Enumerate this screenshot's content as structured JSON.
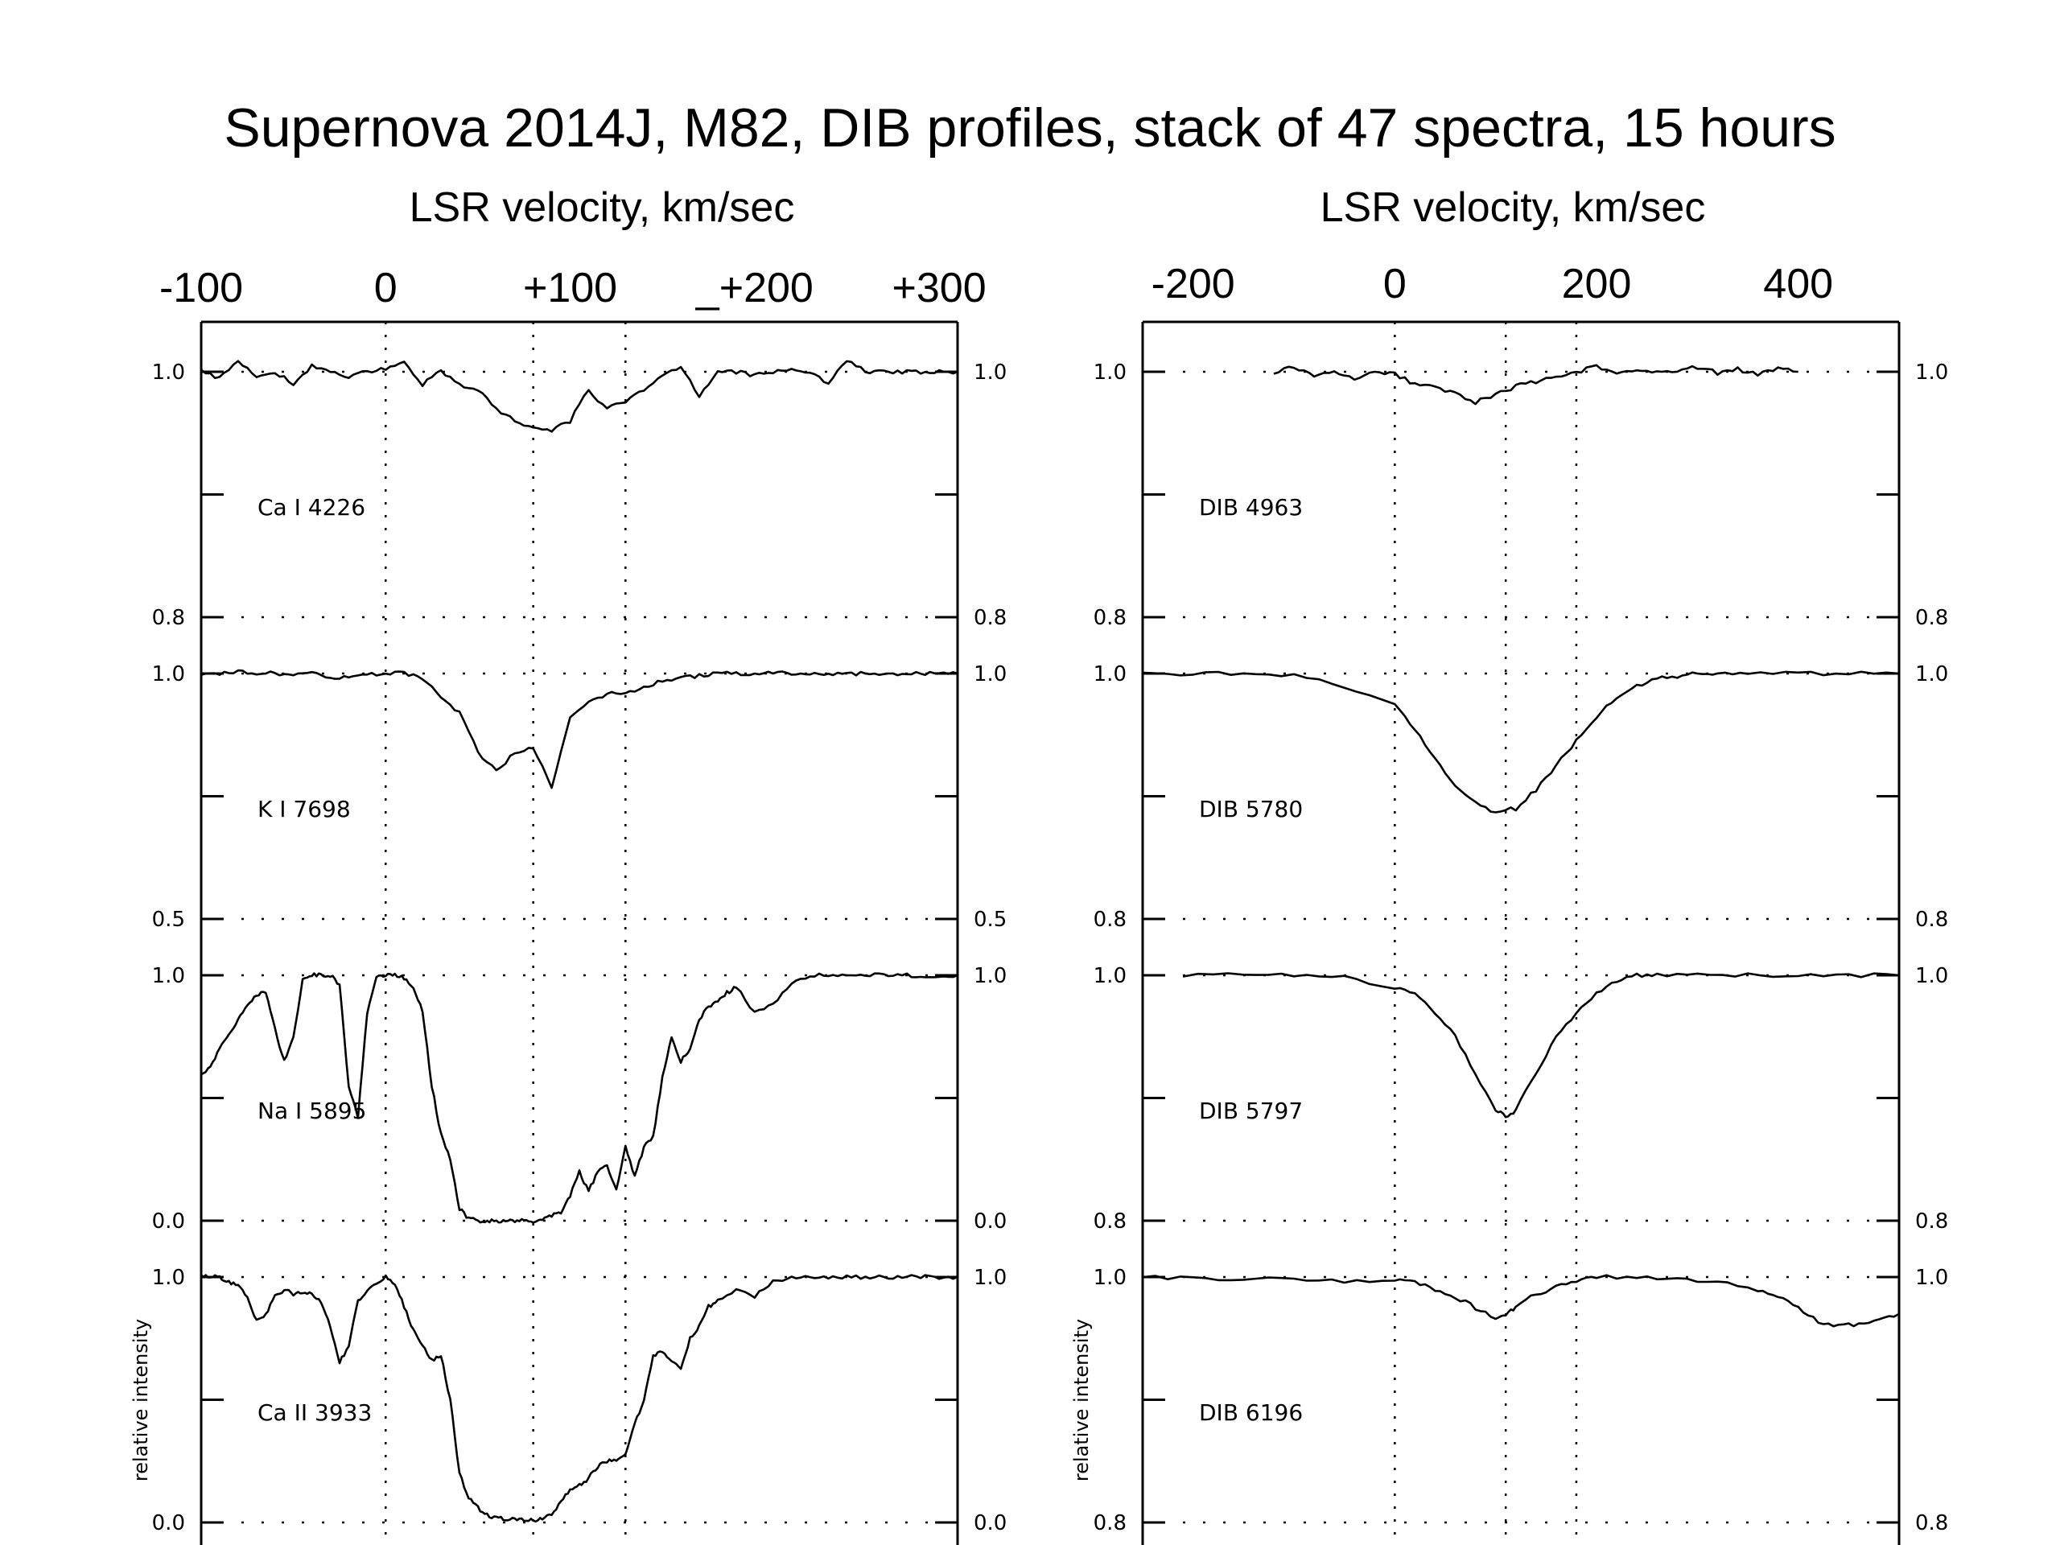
{
  "title": "Supernova 2014J, M82, DIB profiles, stack of 47 spectra, 15 hours",
  "chart_data": [
    {
      "type": "line",
      "axis_title": "LSR velocity, km/sec",
      "xlim": [
        -100,
        310
      ],
      "top_ticks": [
        {
          "v": -100,
          "label": "-100"
        },
        {
          "v": 0,
          "label": "0"
        },
        {
          "v": 100,
          "label": "+100"
        },
        {
          "v": 200,
          "label": "_+200"
        },
        {
          "v": 300,
          "label": "+300"
        }
      ],
      "vlines": [
        0,
        80,
        130
      ],
      "ylabel": "relative intensity",
      "grid": "dotted",
      "panels": [
        {
          "label": "Ca I 4226",
          "ylim": [
            0.8,
            1.0
          ],
          "ytick_top": "1.0",
          "ytick_bottom": "0.8",
          "x": [
            -100,
            -90,
            -80,
            -70,
            -60,
            -50,
            -40,
            -30,
            -20,
            -10,
            0,
            10,
            20,
            30,
            40,
            50,
            60,
            70,
            80,
            90,
            100,
            110,
            120,
            130,
            140,
            150,
            160,
            170,
            180,
            190,
            200,
            210,
            220,
            230,
            240,
            250,
            260,
            270,
            280,
            290,
            300,
            310
          ],
          "y": [
            1.0,
            0.995,
            1.01,
            0.995,
            1.0,
            0.99,
            1.005,
            1.0,
            0.995,
            1.0,
            1.003,
            1.007,
            0.99,
            1.0,
            0.99,
            0.985,
            0.97,
            0.96,
            0.955,
            0.952,
            0.96,
            0.985,
            0.97,
            0.975,
            0.985,
            0.997,
            1.005,
            0.98,
            1.0,
            1.0,
            0.997,
            1.0,
            1.003,
            1.0,
            0.99,
            1.01,
            1.0,
            1.0,
            1.0,
            1.0,
            1.0,
            1.0
          ]
        },
        {
          "label": "K I 7698",
          "ylim": [
            0.5,
            1.0
          ],
          "ytick_top": "1.0",
          "ytick_bottom": "0.5",
          "x": [
            -100,
            -90,
            -80,
            -70,
            -60,
            -50,
            -40,
            -30,
            -20,
            -10,
            0,
            10,
            20,
            30,
            40,
            50,
            60,
            70,
            80,
            90,
            100,
            110,
            120,
            130,
            140,
            150,
            160,
            170,
            180,
            190,
            200,
            210,
            220,
            230,
            240,
            250,
            260,
            270,
            280,
            290,
            300,
            310
          ],
          "y": [
            1.0,
            1.0,
            1.005,
            1.0,
            1.0,
            1.0,
            1.0,
            0.99,
            0.995,
            1.0,
            1.0,
            1.0,
            0.99,
            0.95,
            0.92,
            0.84,
            0.8,
            0.84,
            0.85,
            0.77,
            0.91,
            0.94,
            0.96,
            0.96,
            0.97,
            0.985,
            0.99,
            0.995,
            1.0,
            1.0,
            1.0,
            1.0,
            1.0,
            1.0,
            1.0,
            1.0,
            1.0,
            1.0,
            1.0,
            1.0,
            1.0,
            1.0
          ]
        },
        {
          "label": "Na I 5895",
          "ylim": [
            0.0,
            1.0
          ],
          "ytick_top": "1.0",
          "ytick_bottom": "0.0",
          "x": [
            -100,
            -95,
            -90,
            -85,
            -80,
            -75,
            -70,
            -65,
            -60,
            -55,
            -50,
            -45,
            -40,
            -35,
            -30,
            -25,
            -20,
            -15,
            -10,
            -5,
            0,
            5,
            10,
            15,
            20,
            25,
            30,
            35,
            40,
            45,
            50,
            55,
            60,
            65,
            70,
            75,
            80,
            85,
            90,
            95,
            100,
            105,
            110,
            115,
            120,
            125,
            130,
            135,
            140,
            145,
            150,
            155,
            160,
            165,
            170,
            175,
            180,
            185,
            190,
            200,
            210,
            220,
            230,
            240,
            250,
            260,
            270,
            280,
            290,
            300,
            310
          ],
          "y": [
            0.6,
            0.62,
            0.7,
            0.76,
            0.82,
            0.88,
            0.92,
            0.93,
            0.78,
            0.65,
            0.75,
            0.98,
            1.0,
            1.0,
            1.0,
            0.96,
            0.55,
            0.42,
            0.85,
            1.0,
            1.0,
            1.0,
            0.99,
            0.95,
            0.85,
            0.55,
            0.35,
            0.25,
            0.05,
            0.01,
            0.0,
            0.0,
            0.0,
            0.0,
            0.0,
            0.0,
            0.0,
            0.0,
            0.02,
            0.03,
            0.1,
            0.2,
            0.12,
            0.2,
            0.23,
            0.12,
            0.3,
            0.18,
            0.3,
            0.34,
            0.58,
            0.75,
            0.65,
            0.7,
            0.82,
            0.87,
            0.9,
            0.93,
            0.95,
            0.85,
            0.88,
            0.97,
            1.0,
            1.0,
            1.0,
            1.0,
            1.0,
            1.0,
            1.0,
            1.0,
            1.0
          ]
        },
        {
          "label": "Ca II 3933",
          "ylim": [
            0.0,
            1.0
          ],
          "ytick_top": "1.0",
          "ytick_bottom": "0.0",
          "x": [
            -100,
            -95,
            -90,
            -85,
            -80,
            -75,
            -70,
            -65,
            -60,
            -55,
            -50,
            -45,
            -40,
            -35,
            -30,
            -25,
            -20,
            -15,
            -10,
            -5,
            0,
            5,
            10,
            15,
            20,
            25,
            30,
            35,
            40,
            45,
            50,
            55,
            60,
            65,
            70,
            75,
            80,
            85,
            90,
            95,
            100,
            105,
            110,
            115,
            120,
            125,
            130,
            135,
            140,
            145,
            150,
            155,
            160,
            165,
            170,
            175,
            180,
            190,
            200,
            210,
            220,
            230,
            240,
            250,
            260,
            270,
            280,
            290,
            300,
            310
          ],
          "y": [
            1.0,
            1.0,
            1.0,
            0.98,
            0.97,
            0.92,
            0.82,
            0.85,
            0.92,
            0.95,
            0.93,
            0.94,
            0.93,
            0.9,
            0.8,
            0.65,
            0.72,
            0.9,
            0.95,
            0.98,
            1.0,
            0.97,
            0.88,
            0.78,
            0.72,
            0.66,
            0.68,
            0.5,
            0.2,
            0.1,
            0.06,
            0.03,
            0.02,
            0.015,
            0.01,
            0.01,
            0.01,
            0.015,
            0.03,
            0.08,
            0.14,
            0.15,
            0.18,
            0.23,
            0.25,
            0.25,
            0.28,
            0.4,
            0.5,
            0.68,
            0.7,
            0.66,
            0.62,
            0.75,
            0.8,
            0.88,
            0.9,
            0.95,
            0.92,
            0.98,
            1.0,
            1.0,
            1.0,
            1.0,
            1.0,
            1.0,
            1.0,
            1.0,
            1.0,
            1.0
          ]
        }
      ],
      "bottom_ticks": "-100 .. +300"
    },
    {
      "type": "line",
      "axis_title": "LSR velocity, km/sec",
      "xlim": [
        -250,
        500
      ],
      "top_ticks": [
        {
          "v": -200,
          "label": "-200"
        },
        {
          "v": 0,
          "label": "0"
        },
        {
          "v": 200,
          "label": "200"
        },
        {
          "v": 400,
          "label": "400"
        }
      ],
      "vlines": [
        0,
        110,
        180
      ],
      "ylabel": "relative intensity",
      "grid": "dotted",
      "panels": [
        {
          "label": "DIB 4963",
          "ylim": [
            0.8,
            1.0
          ],
          "ytick_top": "1.0",
          "ytick_bottom": "0.8",
          "x": [
            -120,
            -100,
            -80,
            -60,
            -40,
            -20,
            0,
            20,
            40,
            60,
            80,
            100,
            120,
            140,
            160,
            180,
            200,
            220,
            240,
            260,
            280,
            300,
            320,
            340,
            360,
            380,
            400
          ],
          "y": [
            0.999,
            1.004,
            0.997,
            1.0,
            0.995,
            1.0,
            0.998,
            0.99,
            0.987,
            0.983,
            0.975,
            0.982,
            0.988,
            0.992,
            0.997,
            0.999,
            1.005,
            0.998,
            1.002,
            0.999,
            1.0,
            1.004,
            0.999,
            1.002,
            0.998,
            1.003,
            1.0
          ]
        },
        {
          "label": "DIB 5780",
          "ylim": [
            0.8,
            1.0
          ],
          "ytick_top": "1.0",
          "ytick_bottom": "0.8",
          "x": [
            -250,
            -200,
            -150,
            -100,
            -50,
            0,
            20,
            40,
            60,
            80,
            100,
            120,
            140,
            160,
            180,
            200,
            220,
            240,
            260,
            280,
            300,
            320,
            350,
            400,
            450,
            500
          ],
          "y": [
            1.0,
            1.0,
            1.0,
            0.998,
            0.99,
            0.975,
            0.955,
            0.93,
            0.91,
            0.895,
            0.887,
            0.89,
            0.905,
            0.925,
            0.945,
            0.965,
            0.98,
            0.99,
            0.996,
            0.998,
            1.0,
            1.0,
            1.0,
            1.0,
            1.0,
            1.0
          ]
        },
        {
          "label": "DIB 5797",
          "ylim": [
            0.8,
            1.0
          ],
          "ytick_top": "1.0",
          "ytick_bottom": "0.8",
          "x": [
            -210,
            -150,
            -100,
            -50,
            0,
            20,
            40,
            60,
            80,
            100,
            110,
            120,
            140,
            160,
            180,
            200,
            220,
            240,
            260,
            300,
            350,
            400,
            450,
            500
          ],
          "y": [
            1.0,
            1.0,
            1.0,
            0.998,
            0.99,
            0.985,
            0.97,
            0.95,
            0.92,
            0.89,
            0.885,
            0.89,
            0.92,
            0.95,
            0.97,
            0.985,
            0.995,
            1.0,
            1.0,
            1.0,
            1.0,
            1.0,
            1.0,
            1.0
          ]
        },
        {
          "label": "DIB 6196",
          "ylim": [
            0.8,
            1.0
          ],
          "ytick_top": "1.0",
          "ytick_bottom": "0.8",
          "x": [
            -250,
            -200,
            -150,
            -100,
            -50,
            0,
            20,
            40,
            60,
            80,
            100,
            110,
            120,
            140,
            160,
            180,
            200,
            240,
            280,
            320,
            360,
            380,
            400,
            420,
            440,
            460,
            480,
            500
          ],
          "y": [
            1.0,
            0.999,
            0.998,
            0.999,
            0.997,
            0.998,
            0.995,
            0.99,
            0.984,
            0.975,
            0.966,
            0.968,
            0.976,
            0.986,
            0.992,
            0.997,
            1.0,
            1.0,
            0.998,
            0.996,
            0.99,
            0.984,
            0.975,
            0.964,
            0.96,
            0.962,
            0.966,
            0.97
          ]
        }
      ],
      "bottom_ticks": "-250 .. 500"
    }
  ]
}
